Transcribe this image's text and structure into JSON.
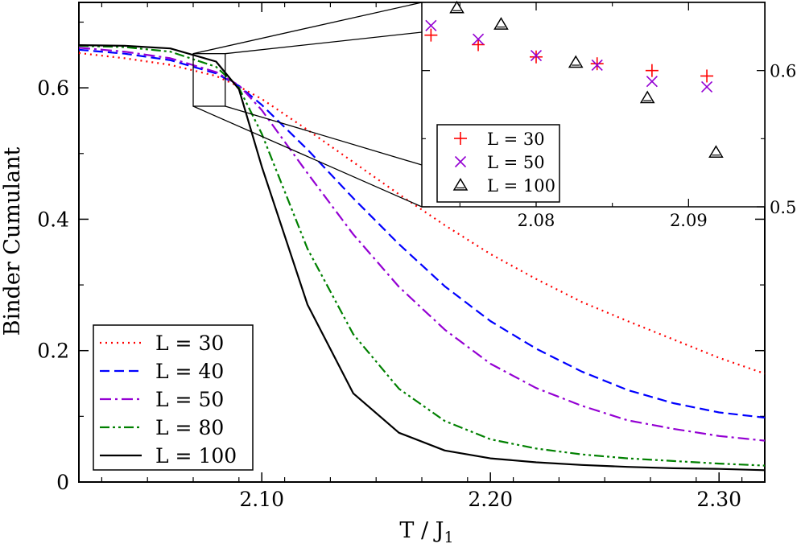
{
  "chart_data": [
    {
      "type": "line",
      "xlabel": "T / J",
      "xlabel_sub": "1",
      "ylabel": "Binder Cumulant",
      "xlim": [
        2.02,
        2.32
      ],
      "ylim": [
        0,
        0.73
      ],
      "x_ticks": [
        2.1,
        2.2,
        2.3
      ],
      "x_tick_labels": [
        "2.10",
        "2.20",
        "2.30"
      ],
      "y_ticks": [
        0,
        0.2,
        0.4,
        0.6
      ],
      "y_tick_labels": [
        "0",
        "0.2",
        "0.4",
        "0.6"
      ],
      "grid": false,
      "legend_position": "bottom-left",
      "x": [
        2.02,
        2.04,
        2.06,
        2.08,
        2.09,
        2.1,
        2.12,
        2.14,
        2.16,
        2.18,
        2.2,
        2.22,
        2.24,
        2.26,
        2.28,
        2.3,
        2.32
      ],
      "series": [
        {
          "name": "L = 30",
          "color": "#ff0000",
          "style": "dotted",
          "values": [
            0.653,
            0.645,
            0.635,
            0.618,
            0.602,
            0.583,
            0.536,
            0.487,
            0.438,
            0.391,
            0.347,
            0.309,
            0.274,
            0.245,
            0.217,
            0.189,
            0.165
          ]
        },
        {
          "name": "L = 40",
          "color": "#0000ff",
          "style": "dashed",
          "values": [
            0.658,
            0.652,
            0.642,
            0.622,
            0.603,
            0.574,
            0.506,
            0.432,
            0.362,
            0.298,
            0.245,
            0.203,
            0.168,
            0.14,
            0.12,
            0.106,
            0.098
          ]
        },
        {
          "name": "L = 50",
          "color": "#9400d3",
          "style": "dash-dot",
          "values": [
            0.661,
            0.655,
            0.645,
            0.624,
            0.604,
            0.566,
            0.47,
            0.377,
            0.297,
            0.232,
            0.18,
            0.143,
            0.116,
            0.094,
            0.081,
            0.07,
            0.063
          ]
        },
        {
          "name": "L = 80",
          "color": "#008000",
          "style": "dash-dot-dot",
          "values": [
            0.664,
            0.662,
            0.655,
            0.632,
            0.6,
            0.53,
            0.355,
            0.225,
            0.142,
            0.093,
            0.065,
            0.051,
            0.042,
            0.036,
            0.032,
            0.028,
            0.025
          ]
        },
        {
          "name": "L = 100",
          "color": "#000000",
          "style": "solid",
          "values": [
            0.665,
            0.664,
            0.66,
            0.64,
            0.598,
            0.48,
            0.27,
            0.135,
            0.075,
            0.048,
            0.036,
            0.03,
            0.026,
            0.023,
            0.021,
            0.02,
            0.018
          ]
        }
      ],
      "zoom_box": {
        "x": [
          2.07,
          2.084
        ],
        "y": [
          0.572,
          0.652
        ]
      }
    },
    {
      "type": "scatter",
      "xlim": [
        2.0725,
        2.095
      ],
      "ylim": [
        0.5,
        0.65
      ],
      "x_ticks": [
        2.08,
        2.09
      ],
      "x_tick_labels": [
        "2.08",
        "2.09"
      ],
      "y_ticks": [
        0.5,
        0.6
      ],
      "y_tick_labels": [
        "0.5",
        "0.6"
      ],
      "y_axis_side": "right",
      "legend_position": "bottom-left",
      "series": [
        {
          "name": "L = 30",
          "color": "#ff0000",
          "marker": "plus",
          "x": [
            2.0731,
            2.0762,
            2.08,
            2.084,
            2.0876,
            2.0912
          ],
          "y": [
            0.626,
            0.619,
            0.61,
            0.605,
            0.6,
            0.596
          ]
        },
        {
          "name": "L = 50",
          "color": "#9400d3",
          "marker": "x",
          "x": [
            2.0731,
            2.0762,
            2.08,
            2.084,
            2.0876,
            2.0912
          ],
          "y": [
            0.633,
            0.623,
            0.611,
            0.604,
            0.592,
            0.588
          ]
        },
        {
          "name": "L = 100",
          "color": "#000000",
          "marker": "triangle",
          "x": [
            2.0748,
            2.0777,
            2.0826,
            2.0873,
            2.0918
          ],
          "y": [
            0.646,
            0.634,
            0.606,
            0.58,
            0.54
          ]
        }
      ]
    }
  ]
}
